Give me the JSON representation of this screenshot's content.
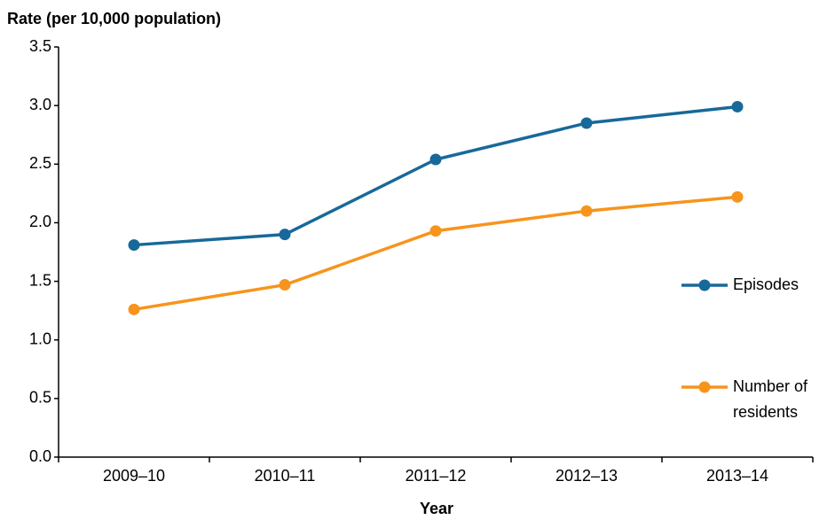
{
  "chart_data": {
    "type": "line",
    "y_label": "Rate (per 10,000 population)",
    "x_label": "Year",
    "categories": [
      "2009–10",
      "2010–11",
      "2011–12",
      "2012–13",
      "2013–14"
    ],
    "series": [
      {
        "name": "Episodes",
        "color": "#17699a",
        "values": [
          1.81,
          1.9,
          2.54,
          2.85,
          2.99
        ]
      },
      {
        "name": "Number of residents",
        "color": "#f7941d",
        "values": [
          1.26,
          1.47,
          1.93,
          2.1,
          2.22
        ]
      }
    ],
    "ylim": [
      0,
      3.5
    ],
    "yticks": [
      {
        "value": 0,
        "label": "0.0"
      },
      0.5,
      {
        "value": 1,
        "label": "1.0"
      },
      1.5,
      {
        "value": 2,
        "label": "2.0"
      },
      2.5,
      {
        "value": 3,
        "label": "3.0"
      },
      3.5
    ],
    "grid": false,
    "legend": "right"
  }
}
